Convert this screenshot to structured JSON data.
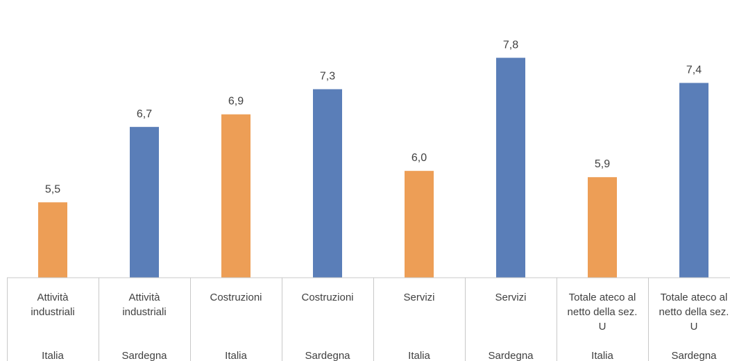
{
  "chart_data": {
    "type": "bar",
    "categories": [
      {
        "label": [
          "Attività",
          "industriali"
        ],
        "group": "Italia"
      },
      {
        "label": [
          "Attività",
          "industriali"
        ],
        "group": "Sardegna"
      },
      {
        "label": [
          "Costruzioni"
        ],
        "group": "Italia"
      },
      {
        "label": [
          "Costruzioni"
        ],
        "group": "Sardegna"
      },
      {
        "label": [
          "Servizi"
        ],
        "group": "Italia"
      },
      {
        "label": [
          "Servizi"
        ],
        "group": "Sardegna"
      },
      {
        "label": [
          "Totale ateco al",
          "netto della sez.",
          "U"
        ],
        "group": "Italia"
      },
      {
        "label": [
          "Totale ateco al",
          "netto della sez.",
          "U"
        ],
        "group": "Sardegna"
      }
    ],
    "values": [
      5.5,
      6.7,
      6.9,
      7.3,
      6.0,
      7.8,
      5.9,
      7.4
    ],
    "value_labels": [
      "5,5",
      "6,7",
      "6,9",
      "7,3",
      "6,0",
      "7,8",
      "5,9",
      "7,4"
    ],
    "ylim": [
      4.3,
      8.3
    ],
    "colors": {
      "Italia": "#ED9E56",
      "Sardegna": "#5A7EB8"
    },
    "title": "",
    "xlabel": "",
    "ylabel": "",
    "grid": false
  }
}
